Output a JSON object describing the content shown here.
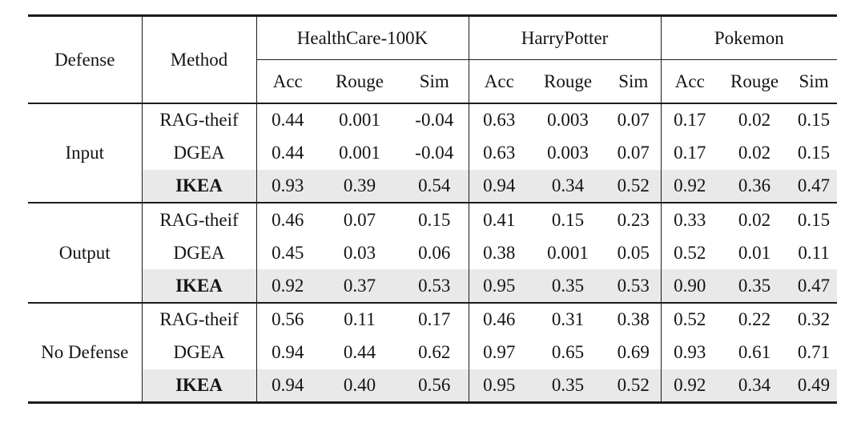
{
  "page": {
    "background": "#ffffff"
  },
  "colors": {
    "highlight_row": "#e9e9e9",
    "rule": "#1c1c1c",
    "text": "#141414"
  },
  "table": {
    "header": {
      "defense": "Defense",
      "method": "Method",
      "groups": [
        "HealthCare-100K",
        "HarryPotter",
        "Pokemon"
      ],
      "metrics": [
        "Acc",
        "Rouge",
        "Sim"
      ]
    },
    "groups": [
      {
        "defense": "Input",
        "rows": [
          {
            "method": "RAG-theif",
            "bold": false,
            "highlight": false,
            "values": [
              "0.44",
              "0.001",
              "-0.04",
              "0.63",
              "0.003",
              "0.07",
              "0.17",
              "0.02",
              "0.15"
            ]
          },
          {
            "method": "DGEA",
            "bold": false,
            "highlight": false,
            "values": [
              "0.44",
              "0.001",
              "-0.04",
              "0.63",
              "0.003",
              "0.07",
              "0.17",
              "0.02",
              "0.15"
            ]
          },
          {
            "method": "IKEA",
            "bold": true,
            "highlight": true,
            "values": [
              "0.93",
              "0.39",
              "0.54",
              "0.94",
              "0.34",
              "0.52",
              "0.92",
              "0.36",
              "0.47"
            ]
          }
        ]
      },
      {
        "defense": "Output",
        "rows": [
          {
            "method": "RAG-theif",
            "bold": false,
            "highlight": false,
            "values": [
              "0.46",
              "0.07",
              "0.15",
              "0.41",
              "0.15",
              "0.23",
              "0.33",
              "0.02",
              "0.15"
            ]
          },
          {
            "method": "DGEA",
            "bold": false,
            "highlight": false,
            "values": [
              "0.45",
              "0.03",
              "0.06",
              "0.38",
              "0.001",
              "0.05",
              "0.52",
              "0.01",
              "0.11"
            ]
          },
          {
            "method": "IKEA",
            "bold": true,
            "highlight": true,
            "values": [
              "0.92",
              "0.37",
              "0.53",
              "0.95",
              "0.35",
              "0.53",
              "0.90",
              "0.35",
              "0.47"
            ]
          }
        ]
      },
      {
        "defense": "No Defense",
        "rows": [
          {
            "method": "RAG-theif",
            "bold": false,
            "highlight": false,
            "values": [
              "0.56",
              "0.11",
              "0.17",
              "0.46",
              "0.31",
              "0.38",
              "0.52",
              "0.22",
              "0.32"
            ]
          },
          {
            "method": "DGEA",
            "bold": false,
            "highlight": false,
            "values": [
              "0.94",
              "0.44",
              "0.62",
              "0.97",
              "0.65",
              "0.69",
              "0.93",
              "0.61",
              "0.71"
            ]
          },
          {
            "method": "IKEA",
            "bold": true,
            "highlight": true,
            "values": [
              "0.94",
              "0.40",
              "0.56",
              "0.95",
              "0.35",
              "0.52",
              "0.92",
              "0.34",
              "0.49"
            ]
          }
        ]
      }
    ]
  },
  "chart_data": {
    "type": "table",
    "columns": [
      "Defense",
      "Method",
      "HealthCare-100K Acc",
      "HealthCare-100K Rouge",
      "HealthCare-100K Sim",
      "HarryPotter Acc",
      "HarryPotter Rouge",
      "HarryPotter Sim",
      "Pokemon Acc",
      "Pokemon Rouge",
      "Pokemon Sim"
    ],
    "rows": [
      [
        "Input",
        "RAG-theif",
        0.44,
        0.001,
        -0.04,
        0.63,
        0.003,
        0.07,
        0.17,
        0.02,
        0.15
      ],
      [
        "Input",
        "DGEA",
        0.44,
        0.001,
        -0.04,
        0.63,
        0.003,
        0.07,
        0.17,
        0.02,
        0.15
      ],
      [
        "Input",
        "IKEA",
        0.93,
        0.39,
        0.54,
        0.94,
        0.34,
        0.52,
        0.92,
        0.36,
        0.47
      ],
      [
        "Output",
        "RAG-theif",
        0.46,
        0.07,
        0.15,
        0.41,
        0.15,
        0.23,
        0.33,
        0.02,
        0.15
      ],
      [
        "Output",
        "DGEA",
        0.45,
        0.03,
        0.06,
        0.38,
        0.001,
        0.05,
        0.52,
        0.01,
        0.11
      ],
      [
        "Output",
        "IKEA",
        0.92,
        0.37,
        0.53,
        0.95,
        0.35,
        0.53,
        0.9,
        0.35,
        0.47
      ],
      [
        "No Defense",
        "RAG-theif",
        0.56,
        0.11,
        0.17,
        0.46,
        0.31,
        0.38,
        0.52,
        0.22,
        0.32
      ],
      [
        "No Defense",
        "DGEA",
        0.94,
        0.44,
        0.62,
        0.97,
        0.65,
        0.69,
        0.93,
        0.61,
        0.71
      ],
      [
        "No Defense",
        "IKEA",
        0.94,
        0.4,
        0.56,
        0.95,
        0.35,
        0.52,
        0.92,
        0.34,
        0.49
      ]
    ]
  }
}
